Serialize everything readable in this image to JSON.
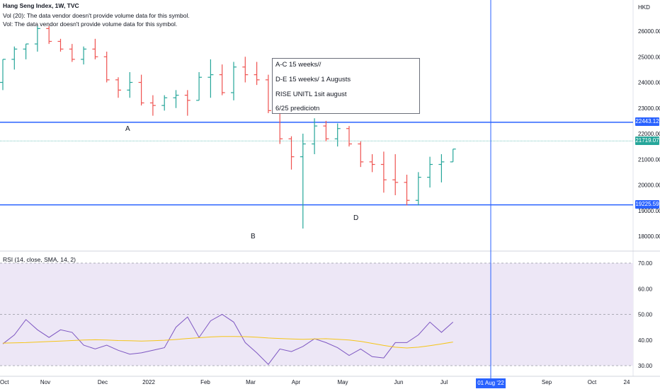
{
  "header": {
    "title": "Hang Seng Index, 1W, TVC",
    "vol_note_1": "Vol (20): The data vendor doesn't provide volume data for this symbol.",
    "vol_note_2": "Vol: The data vendor doesn't provide volume data for this symbol."
  },
  "currency": "HKD",
  "rsi_title": "RSI (14, close, SMA, 14, 2)",
  "annotation": {
    "line1": "A-C 15 weeks//",
    "line2": "D-E 15 weeks/ 1 Augusts",
    "line3": "RISE UNITL 1sit august",
    "line4": "6/25 prediciotn"
  },
  "points": {
    "A": "A",
    "B": "B",
    "D": "D"
  },
  "price_tags": {
    "upper": "22443.12",
    "current": "21719.07",
    "lower": "19225.59"
  },
  "date_tag": "01 Aug '22",
  "colors": {
    "up": "#26a69a",
    "down": "#ef5350",
    "hline": "#2962ff",
    "vline": "#2962ff",
    "current": "#26a69a",
    "rsi": "#7e57c2",
    "rsi_ma": "#f5c518",
    "rsi_band": "#ede7f6"
  },
  "chart_data": [
    {
      "type": "candlestick",
      "title": "Hang Seng Index, 1W, TVC",
      "ylabel": "HKD",
      "ylim": [
        17300,
        26600
      ],
      "yticks": [
        "26000.00",
        "25000.00",
        "24000.00",
        "23000.00",
        "22000.00",
        "21000.00",
        "20000.00",
        "19000.00",
        "18000.00"
      ],
      "xticks": [
        "Oct",
        "Nov",
        "Dec",
        "2022",
        "Feb",
        "Mar",
        "Apr",
        "May",
        "Jun",
        "Jul",
        "Aug",
        "Sep",
        "Oct",
        "24"
      ],
      "x_dates": [
        "2021-09-20",
        "2021-09-27",
        "2021-10-04",
        "2021-10-11",
        "2021-10-18",
        "2021-10-25",
        "2021-11-01",
        "2021-11-08",
        "2021-11-15",
        "2021-11-22",
        "2021-11-29",
        "2021-12-06",
        "2021-12-13",
        "2021-12-20",
        "2021-12-27",
        "2022-01-03",
        "2022-01-10",
        "2022-01-17",
        "2022-01-24",
        "2022-01-31",
        "2022-02-07",
        "2022-02-14",
        "2022-02-21",
        "2022-02-28",
        "2022-03-07",
        "2022-03-14",
        "2022-03-21",
        "2022-03-28",
        "2022-04-04",
        "2022-04-11",
        "2022-04-18",
        "2022-04-25",
        "2022-05-02",
        "2022-05-09",
        "2022-05-16",
        "2022-05-23",
        "2022-05-30",
        "2022-06-06",
        "2022-06-13",
        "2022-06-20"
      ],
      "candles": [
        {
          "o": 24000,
          "h": 24900,
          "l": 23700,
          "c": 24900
        },
        {
          "o": 24900,
          "h": 25400,
          "l": 24500,
          "c": 25300
        },
        {
          "o": 25300,
          "h": 25500,
          "l": 24900,
          "c": 25500
        },
        {
          "o": 25500,
          "h": 26200,
          "l": 25200,
          "c": 26100
        },
        {
          "o": 26100,
          "h": 26200,
          "l": 25500,
          "c": 25600
        },
        {
          "o": 25600,
          "h": 25700,
          "l": 25200,
          "c": 25300
        },
        {
          "o": 25300,
          "h": 25500,
          "l": 24800,
          "c": 24900
        },
        {
          "o": 24900,
          "h": 25400,
          "l": 24700,
          "c": 25300
        },
        {
          "o": 25300,
          "h": 25700,
          "l": 24900,
          "c": 25000
        },
        {
          "o": 25000,
          "h": 25200,
          "l": 24000,
          "c": 24100
        },
        {
          "o": 24100,
          "h": 24200,
          "l": 23400,
          "c": 23700
        },
        {
          "o": 23700,
          "h": 24400,
          "l": 23400,
          "c": 24000
        },
        {
          "o": 24000,
          "h": 24300,
          "l": 23100,
          "c": 23200
        },
        {
          "o": 23200,
          "h": 23500,
          "l": 22700,
          "c": 23100
        },
        {
          "o": 23100,
          "h": 23500,
          "l": 22900,
          "c": 23400
        },
        {
          "o": 23400,
          "h": 23700,
          "l": 23000,
          "c": 23500
        },
        {
          "o": 23500,
          "h": 23700,
          "l": 22700,
          "c": 23300
        },
        {
          "o": 23300,
          "h": 24400,
          "l": 23300,
          "c": 24200
        },
        {
          "o": 24200,
          "h": 24900,
          "l": 23400,
          "c": 24300
        },
        {
          "o": 24300,
          "h": 24700,
          "l": 23500,
          "c": 23600
        },
        {
          "o": 23600,
          "h": 24800,
          "l": 23300,
          "c": 24600
        },
        {
          "o": 24600,
          "h": 25000,
          "l": 24000,
          "c": 24300
        },
        {
          "o": 24300,
          "h": 24800,
          "l": 23900,
          "c": 24100
        },
        {
          "o": 24100,
          "h": 24300,
          "l": 22800,
          "c": 22900
        },
        {
          "o": 22900,
          "h": 22900,
          "l": 21600,
          "c": 21800
        },
        {
          "o": 21800,
          "h": 21900,
          "l": 20600,
          "c": 21100
        },
        {
          "o": 21100,
          "h": 22000,
          "l": 18300,
          "c": 21600
        },
        {
          "o": 21600,
          "h": 22600,
          "l": 21200,
          "c": 22300
        },
        {
          "o": 22300,
          "h": 22500,
          "l": 21700,
          "c": 21800
        },
        {
          "o": 21800,
          "h": 22400,
          "l": 21500,
          "c": 22200
        },
        {
          "o": 22200,
          "h": 22300,
          "l": 21500,
          "c": 21600
        },
        {
          "o": 21600,
          "h": 21700,
          "l": 20700,
          "c": 20900
        },
        {
          "o": 20900,
          "h": 21200,
          "l": 20500,
          "c": 20800
        },
        {
          "o": 20800,
          "h": 21300,
          "l": 19700,
          "c": 20200
        },
        {
          "o": 20200,
          "h": 21200,
          "l": 19600,
          "c": 20100
        },
        {
          "o": 20100,
          "h": 20400,
          "l": 19200,
          "c": 19400
        },
        {
          "o": 19400,
          "h": 20500,
          "l": 19200,
          "c": 20300
        },
        {
          "o": 20300,
          "h": 21100,
          "l": 19900,
          "c": 20800
        },
        {
          "o": 20800,
          "h": 21200,
          "l": 20100,
          "c": 20900
        },
        {
          "o": 20900,
          "h": 21400,
          "l": 20900,
          "c": 21400
        }
      ],
      "hlines": [
        22443.12,
        19225.59
      ],
      "current_price": 21719.07
    },
    {
      "type": "line",
      "title": "RSI (14, close, SMA, 14, 2)",
      "ylim": [
        28,
        72
      ],
      "yticks": [
        "70.00",
        "60.00",
        "50.00",
        "40.00",
        "30.00"
      ],
      "band": [
        30,
        70
      ],
      "levels": [
        70,
        50,
        30
      ],
      "series": [
        {
          "values": [
            38.5,
            42,
            48,
            44,
            41,
            44,
            43,
            38,
            36.5,
            38,
            36,
            34.5,
            35,
            36,
            37,
            45,
            49,
            41,
            47.5,
            50,
            47,
            39,
            35,
            30.5,
            36.5,
            35.5,
            37.5,
            40.5,
            39,
            37,
            34,
            36.5,
            33.5,
            33,
            39,
            39,
            42,
            47,
            43,
            47
          ]
        },
        {
          "values": [
            38.8,
            38.9,
            39.0,
            39.2,
            39.4,
            39.6,
            39.8,
            40.0,
            40.1,
            40.0,
            39.8,
            39.7,
            39.6,
            39.7,
            39.9,
            40.2,
            40.6,
            40.9,
            41.2,
            41.4,
            41.4,
            41.3,
            41.1,
            40.8,
            40.6,
            40.4,
            40.3,
            40.4,
            40.5,
            40.3,
            40.0,
            39.5,
            38.7,
            37.9,
            37.2,
            36.9,
            37.2,
            37.8,
            38.5,
            39.2
          ]
        }
      ]
    }
  ]
}
